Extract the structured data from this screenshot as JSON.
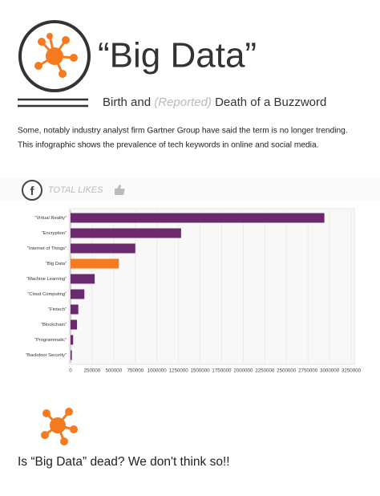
{
  "header": {
    "title": "“Big Data”",
    "subtitle_parts": [
      "Birth and ",
      "(Reported)",
      " Death of a Buzzword"
    ]
  },
  "intro": [
    "Some, notably industry analyst firm Gartner Group have said the term is no longer trending.",
    "This infographic shows the prevalence of tech keywords in online and social media."
  ],
  "section_label": "TOTAL LIKES",
  "chart_data": {
    "type": "hbar",
    "categories": [
      "“Virtual Reality”",
      "“Encryption”",
      "“Internet of Things”",
      "“Big Data”",
      "“Machine Learning”",
      "“Cloud Computing”",
      "“Fintech”",
      "“Blockchain”",
      "“Programmatic”",
      "“Backdoor Security”"
    ],
    "values": [
      2940000,
      1280000,
      750000,
      560000,
      280000,
      160000,
      90000,
      75000,
      30000,
      15000
    ],
    "colors": [
      "#6b2a6e",
      "#6b2a6e",
      "#6b2a6e",
      "#f47b20",
      "#6b2a6e",
      "#6b2a6e",
      "#6b2a6e",
      "#6b2a6e",
      "#6b2a6e",
      "#6b2a6e"
    ],
    "xlim": [
      0,
      3250000
    ],
    "xticks": [
      0,
      250000,
      500000,
      750000,
      1000000,
      1250000,
      1500000,
      1750000,
      2000000,
      2250000,
      2500000,
      2750000,
      3000000,
      3250000
    ],
    "grid": true
  },
  "footer": "Is “Big Data” dead? We don't think so!!"
}
